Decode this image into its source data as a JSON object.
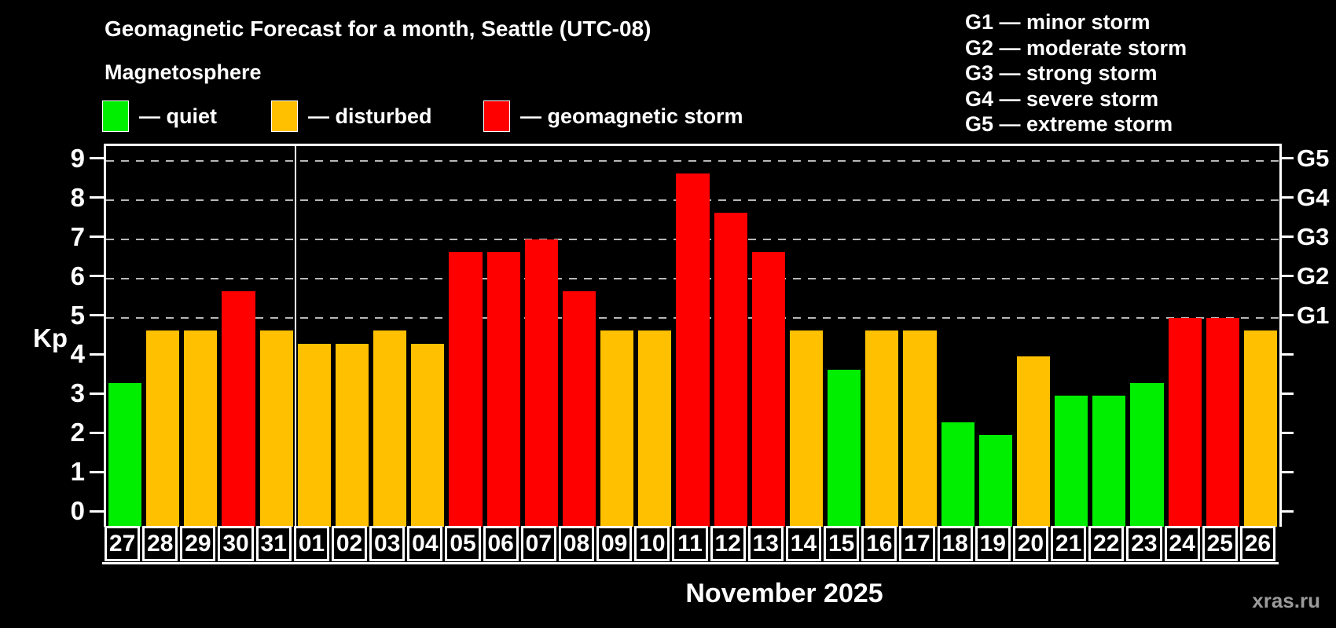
{
  "header": {
    "title": "Geomagnetic Forecast for a month, Seattle (UTC-08)",
    "subtitle": "Magnetosphere"
  },
  "legend": {
    "items": [
      {
        "key": "quiet",
        "swatch_color": "#00ee00",
        "label": "— quiet"
      },
      {
        "key": "disturbed",
        "swatch_color": "#ffc000",
        "label": "— disturbed"
      },
      {
        "key": "storm",
        "swatch_color": "#ff0000",
        "label": "— geomagnetic storm"
      }
    ]
  },
  "storm_scale_legend": {
    "items": [
      "G1 — minor storm",
      "G2 — moderate storm",
      "G3 — strong storm",
      "G4 — severe storm",
      "G5 — extreme storm"
    ]
  },
  "xaxis_title": "November 2025",
  "watermark": "xras.ru",
  "chart_data": {
    "type": "bar",
    "title": "Geomagnetic Forecast for a month, Seattle (UTC-08)",
    "xlabel": "November 2025",
    "ylabel": "Kp",
    "ylim": [
      0,
      9
    ],
    "y_ticks": [
      0,
      1,
      2,
      3,
      4,
      5,
      6,
      7,
      8,
      9
    ],
    "gridlines_at_kp": [
      5,
      6,
      7,
      8,
      9
    ],
    "right_axis_labels": [
      {
        "kp": 5,
        "label": "G1"
      },
      {
        "kp": 6,
        "label": "G2"
      },
      {
        "kp": 7,
        "label": "G3"
      },
      {
        "kp": 8,
        "label": "G4"
      },
      {
        "kp": 9,
        "label": "G5"
      }
    ],
    "legend_position": "top",
    "grid": "horizontal-dashed",
    "month_separator_after_index": 4,
    "status_colors": {
      "quiet": "#00ee00",
      "disturbed": "#ffc000",
      "storm": "#ff0000"
    },
    "points": [
      {
        "day": "27",
        "kp": 3.33,
        "status": "quiet"
      },
      {
        "day": "28",
        "kp": 4.67,
        "status": "disturbed"
      },
      {
        "day": "29",
        "kp": 4.67,
        "status": "disturbed"
      },
      {
        "day": "30",
        "kp": 5.67,
        "status": "storm"
      },
      {
        "day": "31",
        "kp": 4.67,
        "status": "disturbed"
      },
      {
        "day": "01",
        "kp": 4.33,
        "status": "disturbed"
      },
      {
        "day": "02",
        "kp": 4.33,
        "status": "disturbed"
      },
      {
        "day": "03",
        "kp": 4.67,
        "status": "disturbed"
      },
      {
        "day": "04",
        "kp": 4.33,
        "status": "disturbed"
      },
      {
        "day": "05",
        "kp": 6.67,
        "status": "storm"
      },
      {
        "day": "06",
        "kp": 6.67,
        "status": "storm"
      },
      {
        "day": "07",
        "kp": 7.0,
        "status": "storm"
      },
      {
        "day": "08",
        "kp": 5.67,
        "status": "storm"
      },
      {
        "day": "09",
        "kp": 4.67,
        "status": "disturbed"
      },
      {
        "day": "10",
        "kp": 4.67,
        "status": "disturbed"
      },
      {
        "day": "11",
        "kp": 8.67,
        "status": "storm"
      },
      {
        "day": "12",
        "kp": 7.67,
        "status": "storm"
      },
      {
        "day": "13",
        "kp": 6.67,
        "status": "storm"
      },
      {
        "day": "14",
        "kp": 4.67,
        "status": "disturbed"
      },
      {
        "day": "15",
        "kp": 3.67,
        "status": "quiet"
      },
      {
        "day": "16",
        "kp": 4.67,
        "status": "disturbed"
      },
      {
        "day": "17",
        "kp": 4.67,
        "status": "disturbed"
      },
      {
        "day": "18",
        "kp": 2.33,
        "status": "quiet"
      },
      {
        "day": "19",
        "kp": 2.0,
        "status": "quiet"
      },
      {
        "day": "20",
        "kp": 4.0,
        "status": "disturbed"
      },
      {
        "day": "21",
        "kp": 3.0,
        "status": "quiet"
      },
      {
        "day": "22",
        "kp": 3.0,
        "status": "quiet"
      },
      {
        "day": "23",
        "kp": 3.33,
        "status": "quiet"
      },
      {
        "day": "24",
        "kp": 5.0,
        "status": "storm"
      },
      {
        "day": "25",
        "kp": 5.0,
        "status": "storm"
      },
      {
        "day": "26",
        "kp": 4.67,
        "status": "disturbed"
      }
    ]
  }
}
